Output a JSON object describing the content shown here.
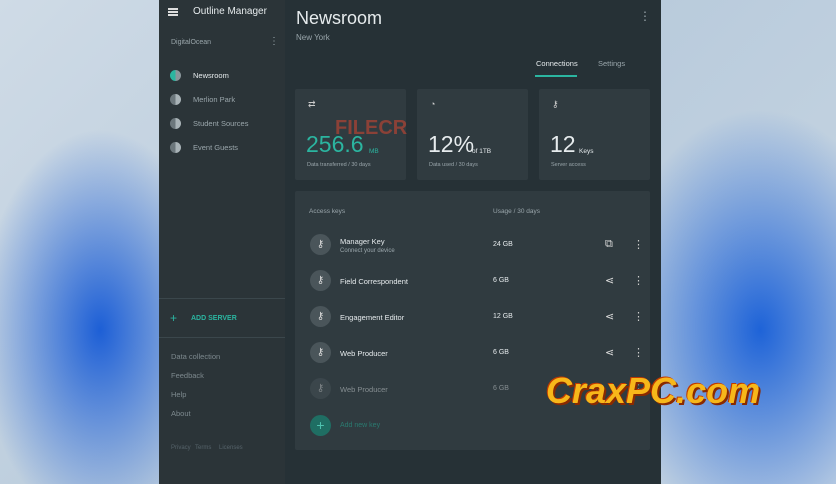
{
  "sidebar": {
    "title": "Outline Manager",
    "provider": "DigitalOcean",
    "servers": [
      "Newsroom",
      "Merlion Park",
      "Student Sources",
      "Event Guests"
    ],
    "add_server": "ADD SERVER",
    "links": [
      "Data collection",
      "Feedback",
      "Help",
      "About"
    ],
    "footer_links": [
      "Privacy",
      "Terms",
      "Licenses"
    ]
  },
  "server": {
    "name": "Newsroom",
    "location": "New York",
    "tabs": [
      "Connections",
      "Settings"
    ],
    "stats": [
      {
        "value": "256.6",
        "unit": "MB",
        "caption": "Data transferred / 30 days"
      },
      {
        "value": "12%",
        "unit": "of 1TB",
        "caption": "Data used / 30 days"
      },
      {
        "value": "12",
        "unit": "Keys",
        "caption": "Server access"
      }
    ]
  },
  "access_keys": {
    "header": [
      "Access keys",
      "Usage / 30 days"
    ],
    "rows": [
      {
        "name": "Manager Key",
        "subtitle": "Connect your device",
        "usage": "24 GB"
      },
      {
        "name": "Field Correspondent",
        "usage": "6 GB"
      },
      {
        "name": "Engagement Editor",
        "usage": "12 GB"
      },
      {
        "name": "Web Producer",
        "usage": "6 GB"
      },
      {
        "name": "Web Producer",
        "usage": "6 GB"
      }
    ],
    "add_key": "Add new key"
  },
  "watermarks": [
    "FILECR",
    "CraxPC.com"
  ]
}
